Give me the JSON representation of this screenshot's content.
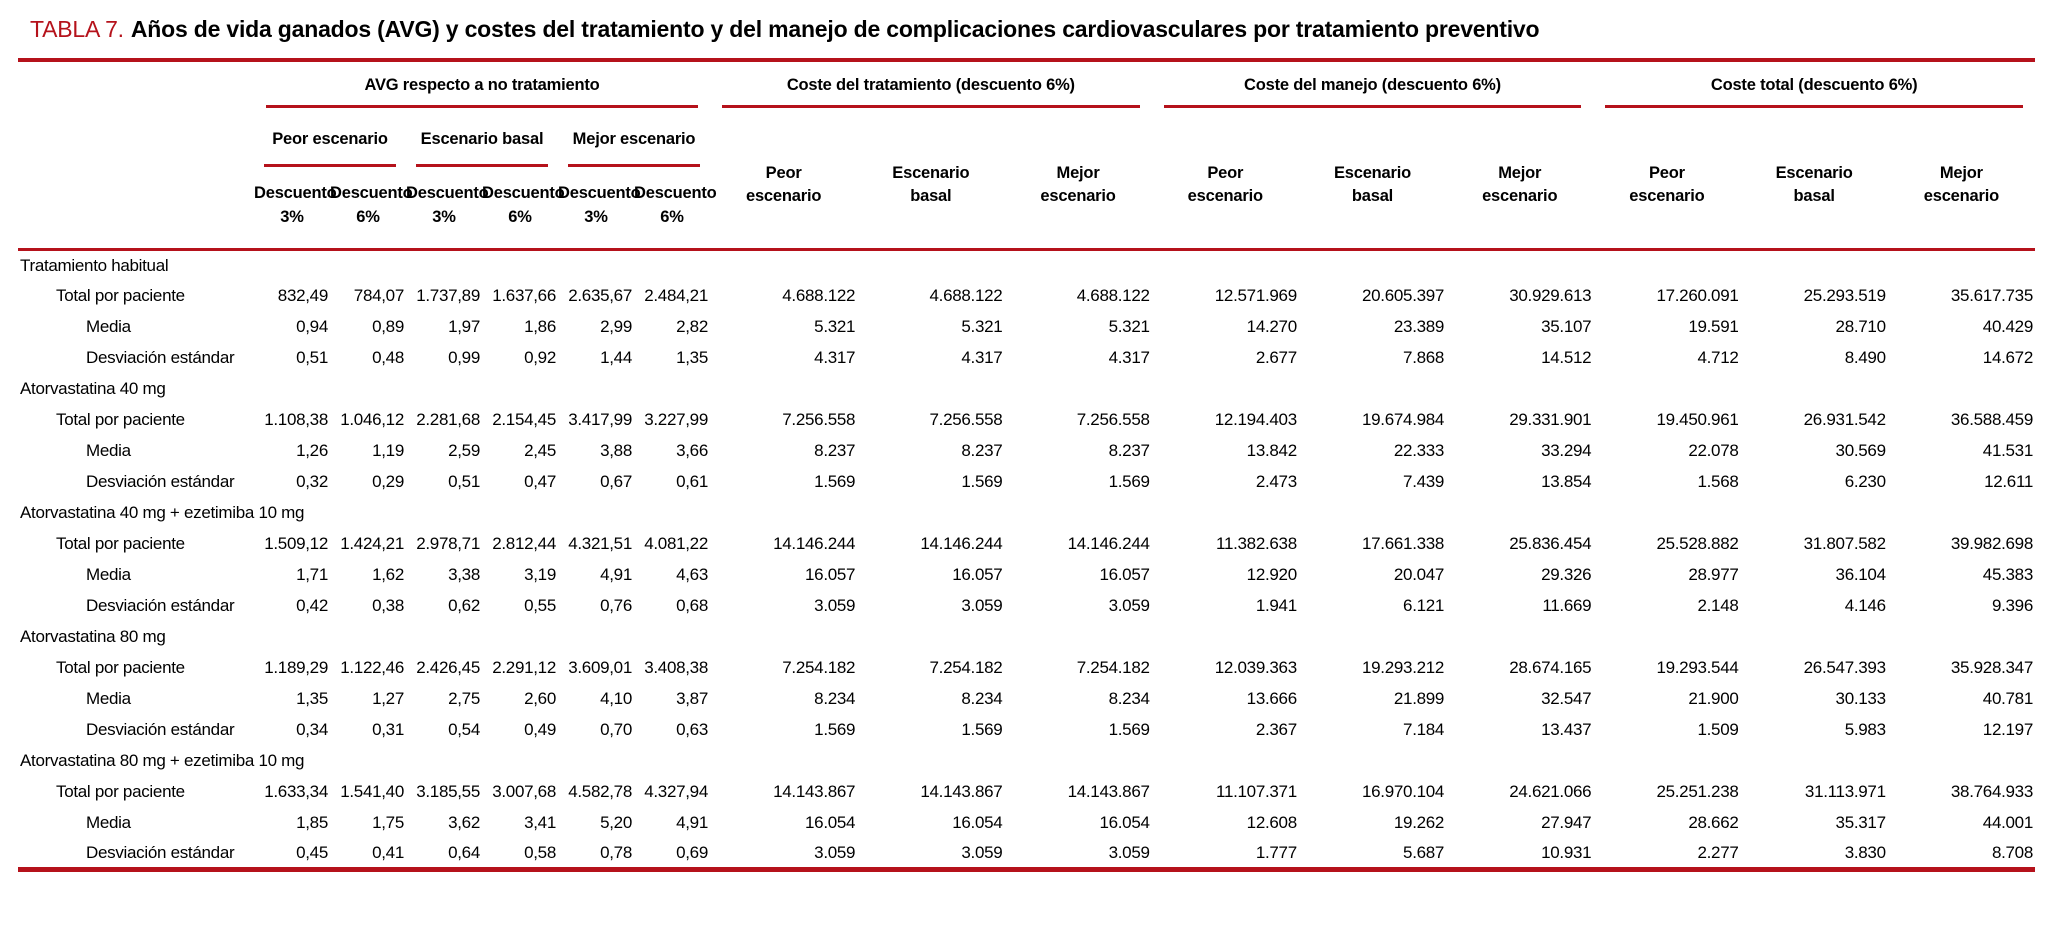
{
  "title": {
    "label": "TABLA 7.",
    "text": "Años de vida ganados (AVG) y costes del tratamiento y del manejo de complicaciones cardiovasculares por tratamiento preventivo"
  },
  "colors": {
    "accent_red": "#b5121b",
    "text": "#000000"
  },
  "header": {
    "groups": [
      {
        "label": "AVG respecto a no tratamiento"
      },
      {
        "label": "Coste del tratamiento (descuento 6%)"
      },
      {
        "label": "Coste del manejo (descuento 6%)"
      },
      {
        "label": "Coste total (descuento 6%)"
      }
    ],
    "avg_scenarios": [
      "Peor escenario",
      "Escenario basal",
      "Mejor escenario"
    ],
    "discount": {
      "word": "Descuento",
      "p3": "3%",
      "p6": "6%"
    },
    "cost_scenarios": [
      {
        "l1": "Peor",
        "l2": "escenario"
      },
      {
        "l1": "Escenario",
        "l2": "basal"
      },
      {
        "l1": "Mejor",
        "l2": "escenario"
      }
    ]
  },
  "table": {
    "row_labels": {
      "total": "Total por paciente",
      "media": "Media",
      "sd": "Desviación estándar"
    },
    "groups": [
      {
        "name": "Tratamiento habitual",
        "total": [
          "832,49",
          "784,07",
          "1.737,89",
          "1.637,66",
          "2.635,67",
          "2.484,21",
          "4.688.122",
          "4.688.122",
          "4.688.122",
          "12.571.969",
          "20.605.397",
          "30.929.613",
          "17.260.091",
          "25.293.519",
          "35.617.735"
        ],
        "media": [
          "0,94",
          "0,89",
          "1,97",
          "1,86",
          "2,99",
          "2,82",
          "5.321",
          "5.321",
          "5.321",
          "14.270",
          "23.389",
          "35.107",
          "19.591",
          "28.710",
          "40.429"
        ],
        "sd": [
          "0,51",
          "0,48",
          "0,99",
          "0,92",
          "1,44",
          "1,35",
          "4.317",
          "4.317",
          "4.317",
          "2.677",
          "7.868",
          "14.512",
          "4.712",
          "8.490",
          "14.672"
        ]
      },
      {
        "name": "Atorvastatina 40 mg",
        "total": [
          "1.108,38",
          "1.046,12",
          "2.281,68",
          "2.154,45",
          "3.417,99",
          "3.227,99",
          "7.256.558",
          "7.256.558",
          "7.256.558",
          "12.194.403",
          "19.674.984",
          "29.331.901",
          "19.450.961",
          "26.931.542",
          "36.588.459"
        ],
        "media": [
          "1,26",
          "1,19",
          "2,59",
          "2,45",
          "3,88",
          "3,66",
          "8.237",
          "8.237",
          "8.237",
          "13.842",
          "22.333",
          "33.294",
          "22.078",
          "30.569",
          "41.531"
        ],
        "sd": [
          "0,32",
          "0,29",
          "0,51",
          "0,47",
          "0,67",
          "0,61",
          "1.569",
          "1.569",
          "1.569",
          "2.473",
          "7.439",
          "13.854",
          "1.568",
          "6.230",
          "12.611"
        ]
      },
      {
        "name": "Atorvastatina 40 mg + ezetimiba 10 mg",
        "total": [
          "1.509,12",
          "1.424,21",
          "2.978,71",
          "2.812,44",
          "4.321,51",
          "4.081,22",
          "14.146.244",
          "14.146.244",
          "14.146.244",
          "11.382.638",
          "17.661.338",
          "25.836.454",
          "25.528.882",
          "31.807.582",
          "39.982.698"
        ],
        "media": [
          "1,71",
          "1,62",
          "3,38",
          "3,19",
          "4,91",
          "4,63",
          "16.057",
          "16.057",
          "16.057",
          "12.920",
          "20.047",
          "29.326",
          "28.977",
          "36.104",
          "45.383"
        ],
        "sd": [
          "0,42",
          "0,38",
          "0,62",
          "0,55",
          "0,76",
          "0,68",
          "3.059",
          "3.059",
          "3.059",
          "1.941",
          "6.121",
          "11.669",
          "2.148",
          "4.146",
          "9.396"
        ]
      },
      {
        "name": "Atorvastatina 80 mg",
        "total": [
          "1.189,29",
          "1.122,46",
          "2.426,45",
          "2.291,12",
          "3.609,01",
          "3.408,38",
          "7.254.182",
          "7.254.182",
          "7.254.182",
          "12.039.363",
          "19.293.212",
          "28.674.165",
          "19.293.544",
          "26.547.393",
          "35.928.347"
        ],
        "media": [
          "1,35",
          "1,27",
          "2,75",
          "2,60",
          "4,10",
          "3,87",
          "8.234",
          "8.234",
          "8.234",
          "13.666",
          "21.899",
          "32.547",
          "21.900",
          "30.133",
          "40.781"
        ],
        "sd": [
          "0,34",
          "0,31",
          "0,54",
          "0,49",
          "0,70",
          "0,63",
          "1.569",
          "1.569",
          "1.569",
          "2.367",
          "7.184",
          "13.437",
          "1.509",
          "5.983",
          "12.197"
        ]
      },
      {
        "name": "Atorvastatina 80 mg + ezetimiba 10 mg",
        "total": [
          "1.633,34",
          "1.541,40",
          "3.185,55",
          "3.007,68",
          "4.582,78",
          "4.327,94",
          "14.143.867",
          "14.143.867",
          "14.143.867",
          "11.107.371",
          "16.970.104",
          "24.621.066",
          "25.251.238",
          "31.113.971",
          "38.764.933"
        ],
        "media": [
          "1,85",
          "1,75",
          "3,62",
          "3,41",
          "5,20",
          "4,91",
          "16.054",
          "16.054",
          "16.054",
          "12.608",
          "19.262",
          "27.947",
          "28.662",
          "35.317",
          "44.001"
        ],
        "sd": [
          "0,45",
          "0,41",
          "0,64",
          "0,58",
          "0,78",
          "0,69",
          "3.059",
          "3.059",
          "3.059",
          "1.777",
          "5.687",
          "10.931",
          "2.277",
          "3.830",
          "8.708"
        ]
      }
    ]
  }
}
